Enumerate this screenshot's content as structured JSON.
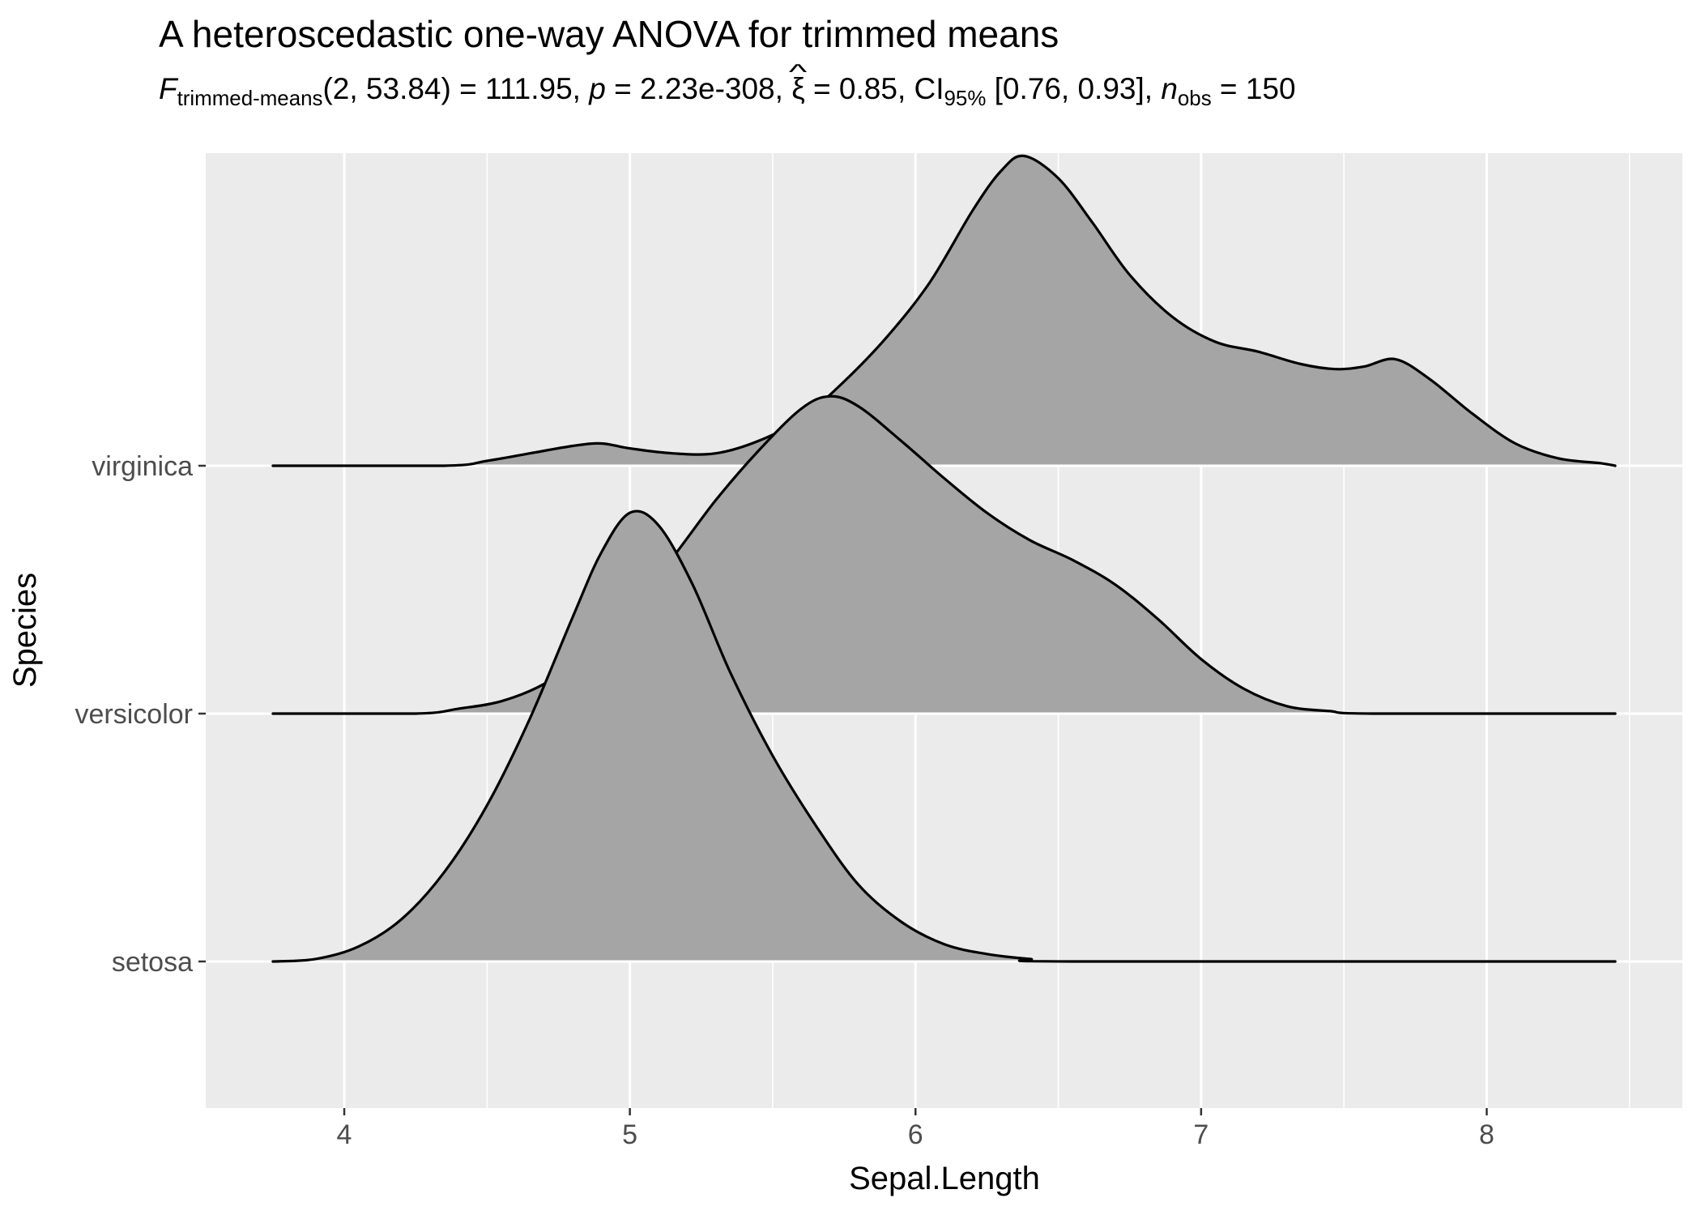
{
  "title": "A heteroscedastic one-way ANOVA for trimmed means",
  "subtitle": {
    "f_symbol": "F",
    "f_subscript": "trimmed-means",
    "df_stat": "(2, 53.84) = 111.95, ",
    "p_symbol": "p",
    "p_value": " = 2.23e-308, ",
    "xi_symbol": "ξ",
    "hat_mark": "^",
    "xi_value": " = 0.85, ",
    "ci_label": "CI",
    "ci_level": "95%",
    "ci_range": " [0.76, 0.93], ",
    "n_symbol": "n",
    "n_subscript": "obs",
    "n_value": " = 150"
  },
  "chart_data": {
    "type": "area",
    "subtype": "ridgeline-density",
    "title": "A heteroscedastic one-way ANOVA for trimmed means",
    "xlabel": "Sepal.Length",
    "ylabel": "Species",
    "x_domain": [
      3.515,
      8.685
    ],
    "x_major_ticks": [
      4,
      5,
      6,
      7,
      8
    ],
    "x_minor_gridlines": [
      4.5,
      5.5,
      6.5,
      7.5,
      8.5
    ],
    "categories": [
      "setosa",
      "versicolor",
      "virginica"
    ],
    "grid": "on",
    "legend": "none",
    "height_unit": "category-row-spacing",
    "series": [
      {
        "name": "virginica",
        "row": 3,
        "points": [
          [
            3.75,
            0
          ],
          [
            4.35,
            0
          ],
          [
            4.5,
            0.02
          ],
          [
            4.65,
            0.05
          ],
          [
            4.8,
            0.08
          ],
          [
            4.9,
            0.09
          ],
          [
            5.0,
            0.07
          ],
          [
            5.15,
            0.05
          ],
          [
            5.3,
            0.05
          ],
          [
            5.45,
            0.1
          ],
          [
            5.6,
            0.19
          ],
          [
            5.75,
            0.34
          ],
          [
            5.9,
            0.52
          ],
          [
            6.05,
            0.74
          ],
          [
            6.2,
            1.03
          ],
          [
            6.3,
            1.19
          ],
          [
            6.38,
            1.25
          ],
          [
            6.5,
            1.16
          ],
          [
            6.62,
            0.98
          ],
          [
            6.75,
            0.77
          ],
          [
            6.9,
            0.6
          ],
          [
            7.05,
            0.5
          ],
          [
            7.2,
            0.46
          ],
          [
            7.35,
            0.41
          ],
          [
            7.47,
            0.39
          ],
          [
            7.57,
            0.4
          ],
          [
            7.68,
            0.43
          ],
          [
            7.8,
            0.35
          ],
          [
            7.95,
            0.21
          ],
          [
            8.1,
            0.09
          ],
          [
            8.25,
            0.03
          ],
          [
            8.4,
            0.01
          ],
          [
            8.45,
            0
          ]
        ]
      },
      {
        "name": "versicolor",
        "row": 2,
        "points": [
          [
            3.75,
            0
          ],
          [
            4.25,
            0
          ],
          [
            4.4,
            0.02
          ],
          [
            4.55,
            0.05
          ],
          [
            4.7,
            0.12
          ],
          [
            4.85,
            0.24
          ],
          [
            5.0,
            0.42
          ],
          [
            5.15,
            0.63
          ],
          [
            5.3,
            0.86
          ],
          [
            5.45,
            1.06
          ],
          [
            5.6,
            1.23
          ],
          [
            5.7,
            1.28
          ],
          [
            5.8,
            1.24
          ],
          [
            5.95,
            1.1
          ],
          [
            6.1,
            0.95
          ],
          [
            6.25,
            0.81
          ],
          [
            6.4,
            0.7
          ],
          [
            6.55,
            0.62
          ],
          [
            6.7,
            0.52
          ],
          [
            6.85,
            0.38
          ],
          [
            7.0,
            0.22
          ],
          [
            7.15,
            0.1
          ],
          [
            7.3,
            0.03
          ],
          [
            7.45,
            0.01
          ],
          [
            7.6,
            0
          ],
          [
            8.45,
            0
          ]
        ]
      },
      {
        "name": "setosa",
        "row": 1,
        "points": [
          [
            3.75,
            0
          ],
          [
            3.9,
            0.01
          ],
          [
            4.05,
            0.06
          ],
          [
            4.2,
            0.17
          ],
          [
            4.35,
            0.36
          ],
          [
            4.5,
            0.63
          ],
          [
            4.65,
            0.98
          ],
          [
            4.8,
            1.39
          ],
          [
            4.9,
            1.65
          ],
          [
            5.0,
            1.81
          ],
          [
            5.1,
            1.76
          ],
          [
            5.22,
            1.52
          ],
          [
            5.35,
            1.17
          ],
          [
            5.5,
            0.83
          ],
          [
            5.65,
            0.55
          ],
          [
            5.8,
            0.31
          ],
          [
            5.95,
            0.16
          ],
          [
            6.1,
            0.07
          ],
          [
            6.25,
            0.03
          ],
          [
            6.4,
            0.01
          ],
          [
            6.55,
            0
          ],
          [
            8.45,
            0
          ]
        ]
      }
    ],
    "colors": {
      "panel": "#EBEBEB",
      "ridge_fill": "#A5A5A5",
      "ridge_line": "#000000",
      "gridline": "#FFFFFF",
      "tick_mark": "#333333",
      "tick_text": "#4D4D4D",
      "axis_title": "#000000"
    }
  }
}
